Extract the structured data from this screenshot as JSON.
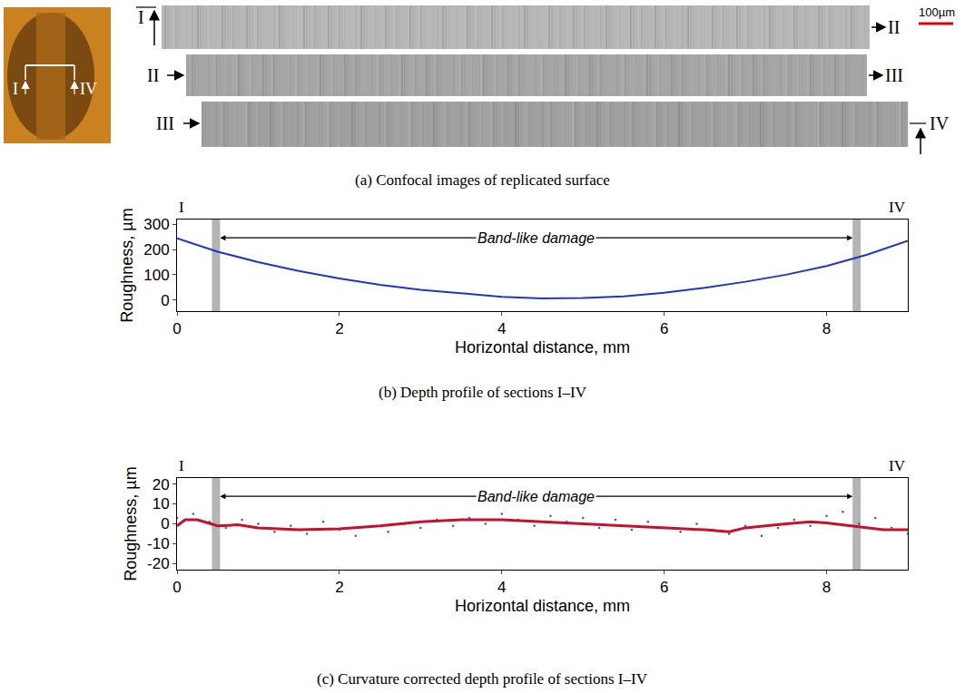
{
  "panel_a": {
    "caption": "(a) Confocal images of replicated surface",
    "section_labels": [
      "I",
      "II",
      "III",
      "IV"
    ],
    "scale_bar": "100µm"
  },
  "chart_data": [
    {
      "type": "line",
      "caption": "(b) Depth profile of sections I–IV",
      "xlabel": "Horizontal distance, mm",
      "ylabel": "Roughness, µm",
      "corner_labels": [
        "I",
        "IV"
      ],
      "annotation": "Band-like damage",
      "bands": [
        [
          0.43,
          0.53
        ],
        [
          8.32,
          8.42
        ]
      ],
      "xlim": [
        0,
        9
      ],
      "xticks": [
        0,
        2,
        4,
        6,
        8
      ],
      "ylim": [
        -45,
        320
      ],
      "yticks": [
        0,
        100,
        200,
        300
      ],
      "grid": false,
      "series": [
        {
          "type": "line",
          "color": "#1f35c8",
          "line_style": "solid",
          "x": [
            0,
            0.5,
            1,
            1.5,
            2,
            2.5,
            3,
            3.5,
            4,
            4.5,
            5,
            5.5,
            6,
            6.5,
            7,
            7.5,
            8,
            8.5,
            9
          ],
          "values": [
            245,
            192,
            150,
            115,
            85,
            60,
            40,
            25,
            12,
            6,
            7,
            14,
            28,
            48,
            72,
            100,
            135,
            180,
            235
          ]
        }
      ]
    },
    {
      "type": "line",
      "caption": "(c) Curvature corrected depth profile of sections I–IV",
      "xlabel": "Horizontal distance, mm",
      "ylabel": "Roughness, µm",
      "corner_labels": [
        "I",
        "IV"
      ],
      "annotation": "Band-like damage",
      "bands": [
        [
          0.43,
          0.53
        ],
        [
          8.32,
          8.42
        ]
      ],
      "xlim": [
        0,
        9
      ],
      "xticks": [
        0,
        2,
        4,
        6,
        8
      ],
      "ylim": [
        -23,
        23
      ],
      "yticks": [
        -20,
        -10,
        0,
        10,
        20
      ],
      "grid": false,
      "series": [
        {
          "type": "scatter",
          "color": "#3a55d8",
          "marker": "dot",
          "x": [
            0,
            0.2,
            0.4,
            0.6,
            0.8,
            1,
            1.2,
            1.4,
            1.6,
            1.8,
            2,
            2.2,
            2.4,
            2.6,
            2.8,
            3,
            3.2,
            3.4,
            3.6,
            3.8,
            4,
            4.2,
            4.4,
            4.6,
            4.8,
            5,
            5.2,
            5.4,
            5.6,
            5.8,
            6,
            6.2,
            6.4,
            6.6,
            6.8,
            7,
            7.2,
            7.4,
            7.6,
            7.8,
            8,
            8.2,
            8.4,
            8.6,
            8.8,
            9
          ],
          "values": [
            3,
            5,
            1,
            -2,
            2,
            0,
            -4,
            -1,
            -5,
            1,
            -3,
            -6,
            -1,
            -4,
            0,
            -2,
            2,
            -1,
            3,
            0,
            5,
            2,
            -1,
            4,
            1,
            3,
            -2,
            2,
            -3,
            1,
            -2,
            -4,
            0,
            -3,
            -5,
            -1,
            -6,
            -2,
            2,
            -1,
            4,
            6,
            0,
            3,
            -2,
            -5
          ]
        },
        {
          "type": "line",
          "color": "#c8102e",
          "line_style": "solid",
          "x": [
            0,
            0.1,
            0.25,
            0.5,
            0.75,
            1,
            1.5,
            2,
            2.5,
            3,
            3.5,
            4,
            4.5,
            5,
            5.5,
            6,
            6.5,
            6.8,
            7,
            7.5,
            7.8,
            8,
            8.3,
            8.7,
            9
          ],
          "values": [
            -1,
            2,
            2,
            -1,
            -0.5,
            -2,
            -3,
            -2.5,
            -1,
            1,
            2,
            2,
            1,
            0,
            -1,
            -2,
            -3,
            -4,
            -2,
            0,
            1,
            0.5,
            -1,
            -3,
            -3
          ]
        }
      ]
    }
  ]
}
